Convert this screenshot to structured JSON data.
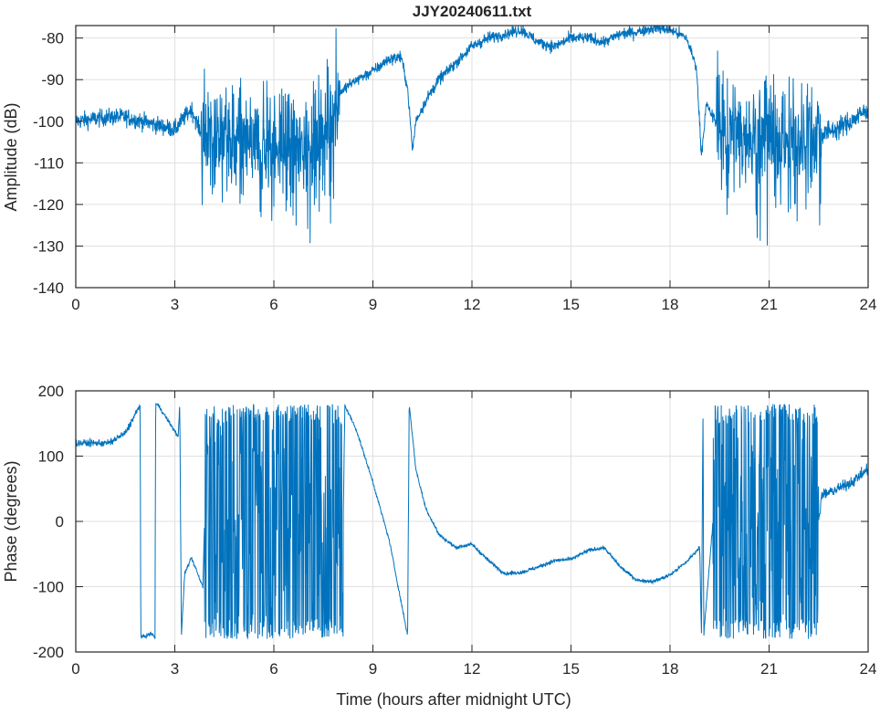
{
  "chart_data": [
    {
      "type": "line",
      "title": "JJY20240611.txt",
      "xlabel": "",
      "ylabel": "Amplitude (dB)",
      "xlim": [
        0,
        24
      ],
      "ylim": [
        -140,
        -77
      ],
      "xticks": [
        0,
        3,
        6,
        9,
        12,
        15,
        18,
        21,
        24
      ],
      "yticks": [
        -140,
        -130,
        -120,
        -110,
        -100,
        -90,
        -80
      ],
      "grid": true,
      "color": "#0072bd",
      "trend": [
        [
          0,
          -100
        ],
        [
          1,
          -99
        ],
        [
          1.5,
          -99
        ],
        [
          2,
          -100
        ],
        [
          2.5,
          -101
        ],
        [
          3,
          -102
        ],
        [
          3.3,
          -99
        ],
        [
          3.5,
          -97
        ],
        [
          3.8,
          -103
        ],
        [
          4.5,
          -104
        ],
        [
          5.5,
          -106
        ],
        [
          6.5,
          -106
        ],
        [
          7.5,
          -104
        ],
        [
          8,
          -93
        ],
        [
          8.5,
          -90
        ],
        [
          9,
          -88
        ],
        [
          9.5,
          -85
        ],
        [
          9.85,
          -84.5
        ],
        [
          10.05,
          -92
        ],
        [
          10.2,
          -107
        ],
        [
          10.3,
          -100
        ],
        [
          10.6,
          -95
        ],
        [
          11,
          -90
        ],
        [
          11.5,
          -86
        ],
        [
          12,
          -82
        ],
        [
          12.5,
          -80
        ],
        [
          13,
          -79
        ],
        [
          13.5,
          -78
        ],
        [
          14,
          -81
        ],
        [
          14.5,
          -82
        ],
        [
          15,
          -80
        ],
        [
          15.5,
          -80
        ],
        [
          16,
          -81
        ],
        [
          16.5,
          -79
        ],
        [
          17,
          -78.5
        ],
        [
          17.5,
          -77.5
        ],
        [
          18,
          -78
        ],
        [
          18.5,
          -80
        ],
        [
          18.8,
          -87
        ],
        [
          18.95,
          -108
        ],
        [
          19.1,
          -96
        ],
        [
          19.5,
          -102
        ],
        [
          20.5,
          -104
        ],
        [
          21.5,
          -104
        ],
        [
          22.5,
          -103
        ],
        [
          23,
          -102
        ],
        [
          23.5,
          -100
        ],
        [
          24,
          -97
        ]
      ],
      "noise": [
        [
          0,
          3.8,
          1.5
        ],
        [
          3.8,
          8,
          9
        ],
        [
          8,
          19.4,
          1
        ],
        [
          19.4,
          22.6,
          9
        ],
        [
          22.6,
          24,
          1.8
        ]
      ]
    },
    {
      "type": "line",
      "title": "",
      "xlabel": "Time (hours after midnight UTC)",
      "ylabel": "Phase (degrees)",
      "xlim": [
        0,
        24
      ],
      "ylim": [
        -200,
        200
      ],
      "xticks": [
        0,
        3,
        6,
        9,
        12,
        15,
        18,
        21,
        24
      ],
      "yticks": [
        -200,
        -100,
        0,
        100,
        200
      ],
      "grid": true,
      "color": "#0072bd",
      "trend": [
        [
          0,
          120
        ],
        [
          1,
          120
        ],
        [
          1.5,
          135
        ],
        [
          1.95,
          178
        ],
        [
          1.97,
          -178
        ],
        [
          2.3,
          -172
        ],
        [
          2.4,
          -178
        ],
        [
          2.42,
          180
        ],
        [
          2.5,
          178
        ],
        [
          3.1,
          130
        ],
        [
          3.15,
          178
        ],
        [
          3.2,
          -175
        ],
        [
          3.3,
          -80
        ],
        [
          3.5,
          -55
        ],
        [
          3.85,
          -100
        ],
        [
          3.9,
          0
        ],
        [
          8.1,
          0
        ],
        [
          8.15,
          178
        ],
        [
          8.5,
          140
        ],
        [
          9,
          60
        ],
        [
          9.5,
          -30
        ],
        [
          10.05,
          -175
        ],
        [
          10.1,
          180
        ],
        [
          10.3,
          80
        ],
        [
          10.6,
          20
        ],
        [
          11,
          -20
        ],
        [
          11.5,
          -40
        ],
        [
          12,
          -35
        ],
        [
          12.5,
          -60
        ],
        [
          13,
          -80
        ],
        [
          13.5,
          -78
        ],
        [
          14,
          -70
        ],
        [
          14.5,
          -60
        ],
        [
          15,
          -58
        ],
        [
          15.5,
          -45
        ],
        [
          16,
          -40
        ],
        [
          16.5,
          -70
        ],
        [
          17,
          -90
        ],
        [
          17.5,
          -92
        ],
        [
          18,
          -82
        ],
        [
          18.5,
          -62
        ],
        [
          18.9,
          -40
        ],
        [
          18.95,
          -178
        ],
        [
          19.0,
          180
        ],
        [
          19.02,
          -175
        ],
        [
          19.3,
          0
        ],
        [
          22.5,
          0
        ],
        [
          22.6,
          40
        ],
        [
          23,
          48
        ],
        [
          23.5,
          60
        ],
        [
          24,
          80
        ]
      ],
      "noise": [
        [
          0,
          1.9,
          4
        ],
        [
          1.9,
          3.9,
          2
        ],
        [
          3.9,
          8.1,
          0
        ],
        [
          8.1,
          19.3,
          2
        ],
        [
          19.3,
          22.5,
          0
        ],
        [
          22.5,
          24,
          6
        ]
      ],
      "wrap_intervals": [
        [
          3.9,
          8.1
        ],
        [
          19.3,
          22.5
        ]
      ]
    }
  ]
}
